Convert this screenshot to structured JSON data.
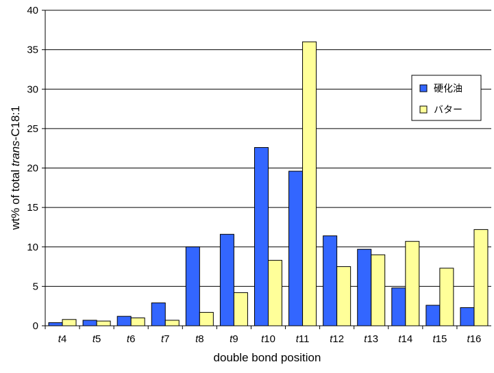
{
  "chart_data": {
    "type": "bar",
    "title": "",
    "xlabel": "double bond position",
    "ylabel_prefix": "wt% of total ",
    "ylabel_italic": "trans",
    "ylabel_suffix": "-C18:1",
    "categories": [
      "t4",
      "t5",
      "t6",
      "t7",
      "t8",
      "t9",
      "t10",
      "t11",
      "t12",
      "t13",
      "t14",
      "t15",
      "t16"
    ],
    "series": [
      {
        "name": "硬化油",
        "color": "#3366ff",
        "values": [
          0.4,
          0.7,
          1.2,
          2.9,
          10.0,
          11.6,
          22.6,
          19.6,
          11.4,
          9.7,
          4.8,
          2.6,
          2.3
        ]
      },
      {
        "name": "バター",
        "color": "#ffff99",
        "values": [
          0.8,
          0.6,
          1.0,
          0.7,
          1.7,
          4.2,
          8.3,
          36.0,
          7.5,
          9.0,
          10.7,
          7.3,
          12.2
        ]
      }
    ],
    "ylim": [
      0,
      40
    ],
    "yticks": [
      0,
      5,
      10,
      15,
      20,
      25,
      30,
      35,
      40
    ],
    "grid": true,
    "legend_position": "right"
  }
}
